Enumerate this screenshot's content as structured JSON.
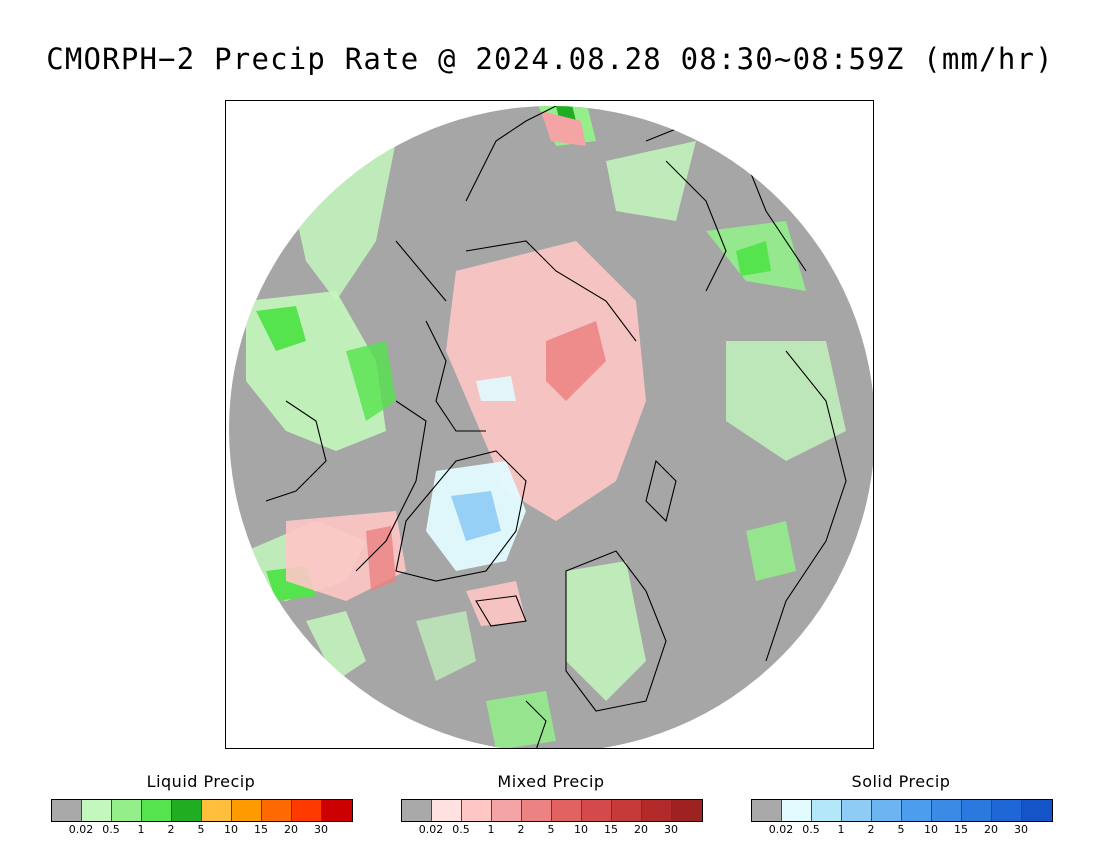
{
  "title": "CMORPH−2 Precip Rate @ 2024.08.28 08:30~08:59Z (mm/hr)",
  "colors": {
    "no_precip": "#a9a9a9",
    "ocean_disc": "#a6a6a6",
    "outside": "#ffffff",
    "coastline": "#000000"
  },
  "legends": [
    {
      "title": "Liquid Precip",
      "swatches": [
        "#a9a9a9",
        "#c3f7bd",
        "#94ef8b",
        "#55e44e",
        "#21ad22",
        "#ffbe3c",
        "#ff9a00",
        "#ff6a00",
        "#ff3a00",
        "#cc0000"
      ],
      "ticks": [
        "0.02",
        "0.5",
        "1",
        "2",
        "5",
        "10",
        "15",
        "20",
        "30"
      ]
    },
    {
      "title": "Mixed Precip",
      "swatches": [
        "#a9a9a9",
        "#ffe1e1",
        "#ffc6c6",
        "#f4a4a4",
        "#ec8282",
        "#e26262",
        "#d44a4a",
        "#c63a3a",
        "#b22a2a",
        "#9e2222"
      ],
      "ticks": [
        "0.02",
        "0.5",
        "1",
        "2",
        "5",
        "10",
        "15",
        "20",
        "30"
      ]
    },
    {
      "title": "Solid Precip",
      "swatches": [
        "#a9a9a9",
        "#e2fbff",
        "#b2e8f8",
        "#8ecbf5",
        "#6cb5f0",
        "#4c9ded",
        "#3a8be6",
        "#2a79de",
        "#1f66d6",
        "#1454c8"
      ],
      "ticks": [
        "0.02",
        "0.5",
        "1",
        "2",
        "5",
        "10",
        "15",
        "20",
        "30"
      ]
    }
  ]
}
